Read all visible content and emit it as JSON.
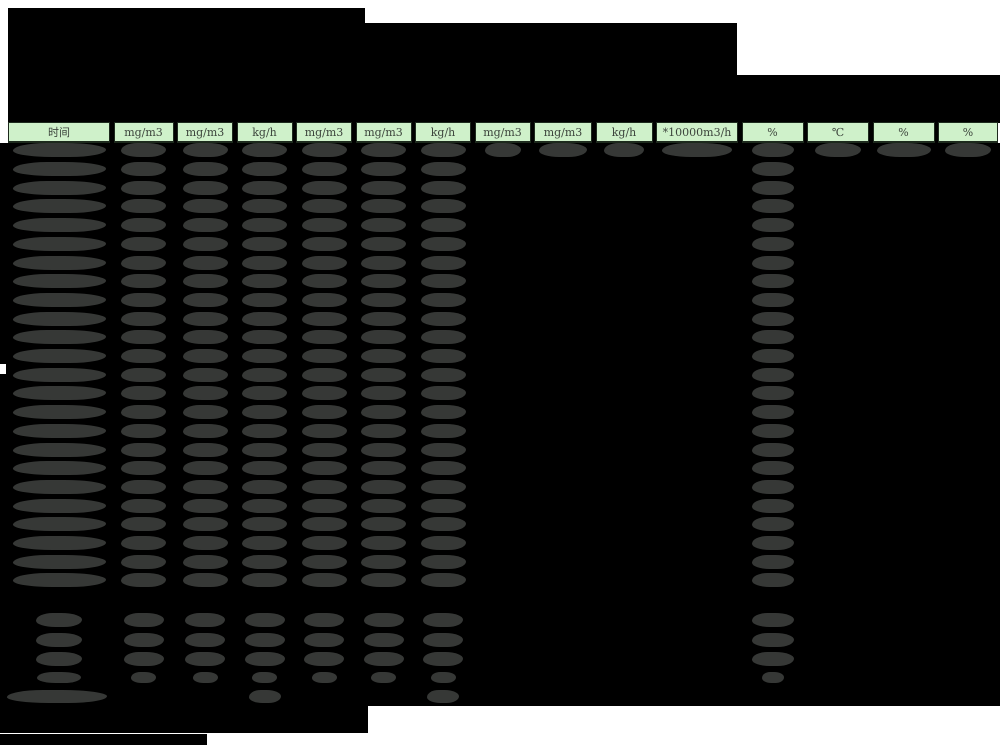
{
  "document": {
    "type": "redacted monitoring report table",
    "page_background": "#ffffff"
  },
  "colors": {
    "redaction_block": "#000000",
    "redacted_value_blob": "#363836",
    "header_cell_bg": "#cff1ca",
    "header_cell_border": "#1d2a1d",
    "header_text": "#3c443c"
  },
  "table": {
    "header": {
      "columns": [
        {
          "label": "时间",
          "width": 102
        },
        {
          "label": "mg/m3",
          "width": 60
        },
        {
          "label": "mg/m3",
          "width": 56
        },
        {
          "label": "kg/h",
          "width": 56
        },
        {
          "label": "mg/m3",
          "width": 56
        },
        {
          "label": "mg/m3",
          "width": 56
        },
        {
          "label": "kg/h",
          "width": 56
        },
        {
          "label": "mg/m3",
          "width": 56
        },
        {
          "label": "mg/m3",
          "width": 58
        },
        {
          "label": "kg/h",
          "width": 57
        },
        {
          "label": "*10000m3/h",
          "width": 82
        },
        {
          "label": "%",
          "width": 62
        },
        {
          "label": "℃",
          "width": 62
        },
        {
          "label": "%",
          "width": 62
        },
        {
          "label": "%",
          "width": 60
        }
      ]
    },
    "body": {
      "all_values_redacted": true,
      "hourly_row_count": 24,
      "first_hourly_row_filled_columns": [
        1,
        2,
        3,
        4,
        5,
        6,
        7,
        8,
        9,
        10,
        11,
        12,
        13,
        14,
        15
      ],
      "hourly_row_filled_columns": [
        1,
        2,
        3,
        4,
        5,
        6,
        7,
        12
      ],
      "stat_row_count": 3,
      "stat_row_filled_columns": [
        1,
        2,
        3,
        4,
        5,
        6,
        7,
        12
      ],
      "small_stat_row_filled_columns": [
        1,
        2,
        3,
        4,
        5,
        6,
        7,
        12
      ],
      "limit_row_filled_columns": [
        1,
        4,
        7
      ]
    }
  }
}
